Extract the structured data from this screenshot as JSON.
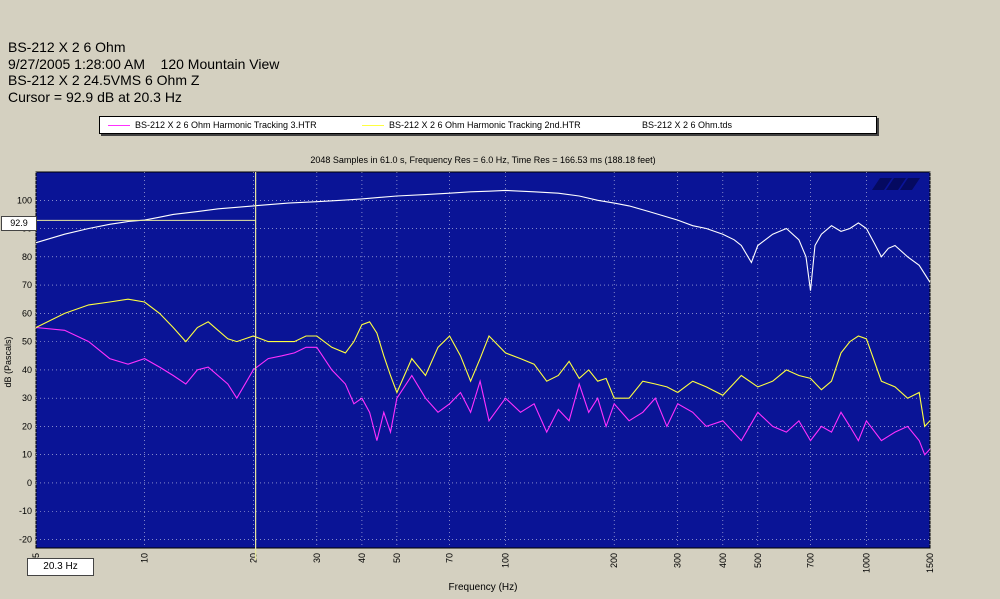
{
  "header": {
    "line1": "BS-212 X 2 6 Ohm",
    "line2": "9/27/2005 1:28:00 AM    120 Mountain View",
    "line3": "BS-212 X 2 24.5VMS 6 Ohm Z",
    "line4": "Cursor = 92.9 dB at 20.3 Hz"
  },
  "cursor": {
    "db_label": "92.9",
    "freq_label": "20.3 Hz",
    "freq": 20.3,
    "db": 92.9
  },
  "colors": {
    "plot_bg": "#0a1496",
    "magenta": "#ff30ff",
    "yellow": "#ffff40",
    "white": "#ffffff",
    "cursor": "#e8e8a0"
  },
  "chart_data": {
    "type": "line",
    "title": "2048 Samples in 61.0 s, Frequency Res = 6.0 Hz, Time Res = 166.53 ms (188.18 feet)",
    "xlabel": "Frequency (Hz)",
    "ylabel": "dB (Pascals)",
    "xscale": "log",
    "xlim": [
      5,
      1500
    ],
    "ylim": [
      -23,
      110
    ],
    "xticks": [
      5,
      10,
      20,
      30,
      40,
      50,
      70,
      100,
      200,
      300,
      400,
      500,
      700,
      1000,
      1500
    ],
    "yticks": [
      -20,
      -10,
      0,
      10,
      20,
      30,
      40,
      50,
      60,
      70,
      80,
      90,
      100
    ],
    "grid": true,
    "series": [
      {
        "name": "BS-212 X 2 6 Ohm Harmonic Tracking 3.HTR",
        "color": "#ff30ff",
        "x": [
          5,
          6,
          7,
          8,
          9,
          10,
          11,
          12,
          13,
          14,
          15,
          17,
          18,
          20,
          22,
          24,
          26,
          28,
          30,
          33,
          36,
          38,
          40,
          42,
          44,
          46,
          48,
          50,
          55,
          60,
          65,
          70,
          75,
          80,
          85,
          90,
          100,
          110,
          120,
          130,
          140,
          150,
          160,
          170,
          180,
          190,
          200,
          220,
          240,
          260,
          280,
          300,
          330,
          360,
          400,
          450,
          500,
          550,
          600,
          650,
          700,
          750,
          800,
          850,
          900,
          950,
          1000,
          1100,
          1200,
          1300,
          1400,
          1450,
          1500
        ],
        "y": [
          55,
          54,
          50,
          44,
          42,
          44,
          41,
          38,
          35,
          40,
          41,
          35,
          30,
          40,
          44,
          45,
          46,
          48,
          48,
          40,
          35,
          28,
          30,
          25,
          15,
          25,
          18,
          30,
          38,
          30,
          25,
          28,
          32,
          25,
          36,
          22,
          30,
          25,
          28,
          18,
          26,
          22,
          35,
          25,
          30,
          20,
          28,
          22,
          25,
          30,
          20,
          28,
          25,
          20,
          22,
          15,
          25,
          20,
          18,
          22,
          15,
          20,
          18,
          25,
          20,
          15,
          22,
          15,
          18,
          20,
          15,
          10,
          12
        ]
      },
      {
        "name": "BS-212 X 2 6 Ohm Harmonic Tracking 2nd.HTR",
        "color": "#ffff40",
        "x": [
          5,
          6,
          7,
          8,
          9,
          10,
          11,
          12,
          13,
          14,
          15,
          17,
          18,
          20,
          22,
          24,
          26,
          28,
          30,
          33,
          36,
          38,
          40,
          42,
          44,
          46,
          48,
          50,
          55,
          60,
          65,
          70,
          75,
          80,
          85,
          90,
          100,
          110,
          120,
          130,
          140,
          150,
          160,
          170,
          180,
          190,
          200,
          220,
          240,
          260,
          280,
          300,
          330,
          360,
          400,
          450,
          500,
          550,
          600,
          650,
          700,
          750,
          800,
          850,
          900,
          950,
          1000,
          1100,
          1200,
          1300,
          1400,
          1450,
          1500
        ],
        "y": [
          55,
          60,
          63,
          64,
          65,
          64,
          60,
          55,
          50,
          55,
          57,
          51,
          50,
          52,
          50,
          50,
          50,
          52,
          52,
          48,
          46,
          50,
          56,
          57,
          53,
          45,
          38,
          32,
          44,
          38,
          48,
          52,
          45,
          36,
          44,
          52,
          46,
          44,
          42,
          36,
          38,
          43,
          37,
          40,
          36,
          37,
          30,
          30,
          36,
          35,
          34,
          32,
          36,
          34,
          31,
          38,
          34,
          36,
          40,
          38,
          37,
          33,
          36,
          46,
          50,
          52,
          51,
          36,
          34,
          30,
          32,
          20,
          22
        ]
      },
      {
        "name": "BS-212 X 2 6 Ohm.tds",
        "color": "#ffffff",
        "x": [
          5,
          6,
          7,
          8,
          9,
          10,
          11,
          12,
          14,
          16,
          18,
          20,
          25,
          30,
          35,
          40,
          50,
          60,
          70,
          80,
          90,
          100,
          120,
          140,
          160,
          180,
          200,
          220,
          250,
          300,
          330,
          360,
          400,
          430,
          450,
          480,
          500,
          550,
          600,
          650,
          680,
          700,
          720,
          750,
          800,
          850,
          900,
          950,
          1000,
          1050,
          1100,
          1150,
          1200,
          1300,
          1400,
          1500
        ],
        "y": [
          85,
          88,
          90,
          91.5,
          92.5,
          93,
          94,
          95,
          96,
          97,
          97.5,
          98,
          99,
          99.5,
          100,
          100.5,
          101.5,
          102,
          102.5,
          103,
          103.2,
          103.5,
          103,
          102.5,
          101.5,
          100,
          99,
          98,
          96,
          93,
          91,
          90,
          88,
          86,
          84,
          78,
          84,
          88,
          90,
          86,
          80,
          68,
          84,
          88,
          91,
          89,
          90,
          92,
          90,
          85,
          80,
          83,
          84,
          80,
          77,
          71
        ]
      }
    ]
  }
}
